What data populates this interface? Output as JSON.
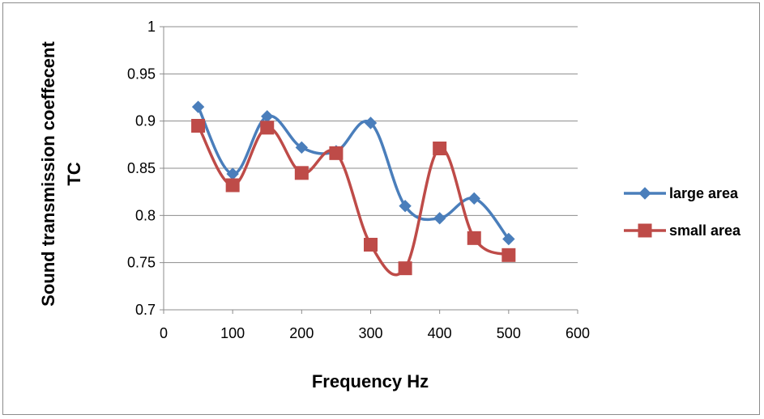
{
  "chart_data": {
    "type": "line",
    "smooth": true,
    "title": "",
    "xlabel": "Frequency Hz",
    "ylabel": [
      "Sound transmission coeffecent",
      "TC"
    ],
    "xlim": [
      0,
      600
    ],
    "ylim": [
      0.7,
      1
    ],
    "xticks": [
      0,
      100,
      200,
      300,
      400,
      500,
      600
    ],
    "yticks": [
      0.7,
      0.75,
      0.8,
      0.85,
      0.9,
      0.95,
      1
    ],
    "xtick_labels": [
      "0",
      "100",
      "200",
      "300",
      "400",
      "500",
      "600"
    ],
    "ytick_labels": [
      "0.7",
      "0.75",
      "0.8",
      "0.85",
      "0.9",
      "0.95",
      "1"
    ],
    "grid": "horizontal",
    "legend_position": "right",
    "x": [
      50,
      100,
      150,
      200,
      250,
      300,
      350,
      400,
      450,
      500
    ],
    "series": [
      {
        "name": "large area",
        "color": "#4a7ebb",
        "marker": "diamond",
        "values": [
          0.915,
          0.844,
          0.905,
          0.872,
          0.868,
          0.898,
          0.81,
          0.797,
          0.818,
          0.775
        ]
      },
      {
        "name": "small area",
        "color": "#be4b48",
        "marker": "square",
        "values": [
          0.895,
          0.832,
          0.893,
          0.845,
          0.866,
          0.769,
          0.744,
          0.871,
          0.776,
          0.758
        ]
      }
    ]
  }
}
